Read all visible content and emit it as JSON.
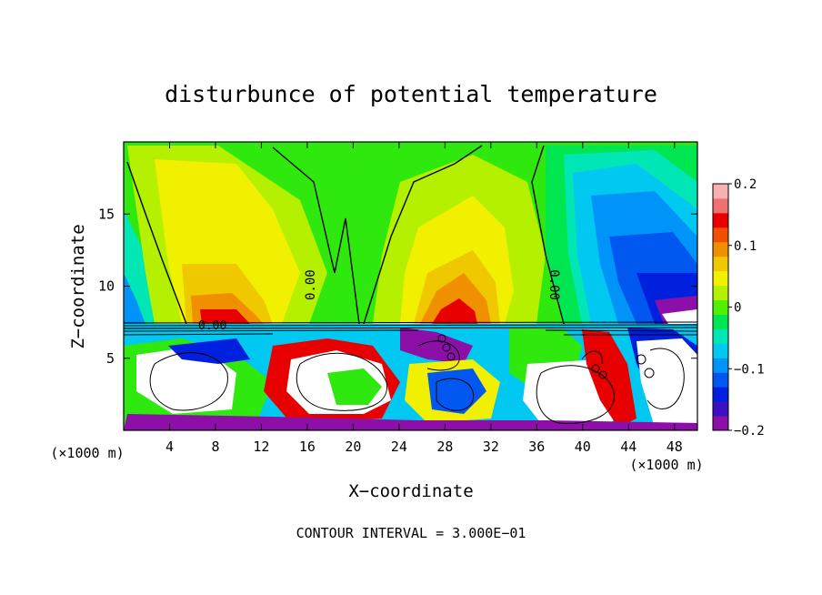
{
  "chart_data": {
    "type": "heatmap",
    "title": "disturbunce of potential temperature",
    "xlabel": "X−coordinate",
    "ylabel": "Z−coordinate",
    "x_unit_left": "(×1000 m)",
    "x_unit_right": "(×1000 m)",
    "footer": "CONTOUR INTERVAL = 3.000E−01",
    "xlim": [
      0,
      50
    ],
    "ylim": [
      0,
      20
    ],
    "x_ticks": [
      4,
      8,
      12,
      16,
      20,
      24,
      28,
      32,
      36,
      40,
      44,
      48
    ],
    "y_ticks": [
      5,
      10,
      15
    ],
    "x_tick_labels": [
      "4",
      "8",
      "12",
      "16",
      "20",
      "24",
      "28",
      "32",
      "36",
      "40",
      "44",
      "48"
    ],
    "y_tick_labels": [
      "5",
      "10",
      "15"
    ],
    "colorbar": {
      "range": [
        -0.2,
        0.2
      ],
      "ticks": [
        0.2,
        0.1,
        0,
        -0.1,
        -0.2
      ],
      "tick_labels": [
        "0.2",
        "0.1",
        "0",
        "−0.1",
        "−0.2"
      ],
      "colors": [
        "#8c10a8",
        "#3c10c0",
        "#0020e0",
        "#0058f0",
        "#0094f8",
        "#00c8f0",
        "#00e6b4",
        "#00e650",
        "#50f000",
        "#b4f000",
        "#f0f000",
        "#f0c800",
        "#f09000",
        "#f05000",
        "#e80000",
        "#f07070",
        "#f8b0b0"
      ]
    },
    "contour_labels": [
      {
        "text": "0.00",
        "x": 16.8,
        "y": 10.5
      },
      {
        "text": "0.00",
        "x": 36.6,
        "y": 10.5
      },
      {
        "text": "0.00",
        "x": 8.5,
        "y": 7.2
      }
    ],
    "field_samples": [
      {
        "x": 8,
        "z": 14,
        "value": 0.07
      },
      {
        "x": 8,
        "z": 9.5,
        "value": 0.12
      },
      {
        "x": 20,
        "z": 16,
        "value": 0.0
      },
      {
        "x": 28,
        "z": 12,
        "value": 0.07
      },
      {
        "x": 28.5,
        "z": 9,
        "value": 0.12
      },
      {
        "x": 44,
        "z": 12,
        "value": -0.15
      },
      {
        "x": 48.5,
        "z": 9,
        "value": -0.2
      }
    ]
  }
}
